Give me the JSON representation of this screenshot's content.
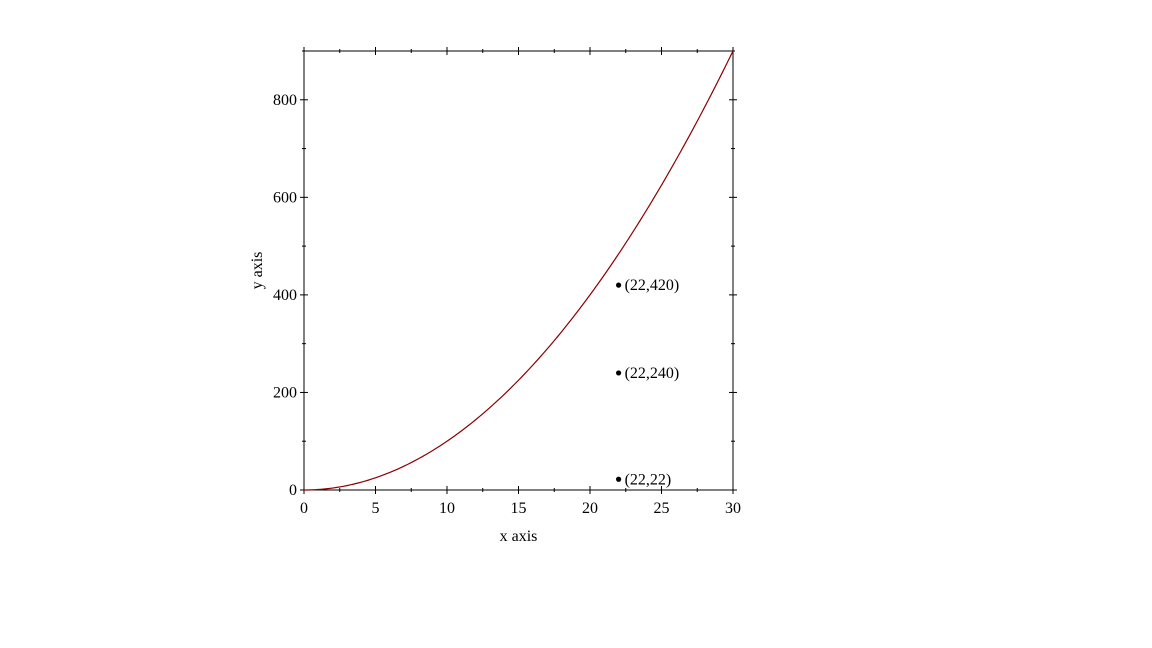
{
  "chart_data": {
    "type": "line",
    "title": "",
    "xlabel": "x axis",
    "ylabel": "y axis",
    "xlim": [
      0,
      30
    ],
    "ylim": [
      0,
      900
    ],
    "x_major_ticks": [
      0,
      5,
      10,
      15,
      20,
      25,
      30
    ],
    "x_minor_ticks": [
      2.5,
      7.5,
      12.5,
      17.5,
      22.5,
      27.5
    ],
    "y_major_ticks": [
      0,
      200,
      400,
      600,
      800
    ],
    "y_minor_ticks": [
      100,
      300,
      500,
      700,
      900
    ],
    "x_tick_labels": [
      "0",
      "5",
      "10",
      "15",
      "20",
      "25",
      "30"
    ],
    "y_tick_labels": [
      "0",
      "200",
      "400",
      "600",
      "800"
    ],
    "grid": false,
    "series": [
      {
        "kind": "function",
        "expression": "y = x^2",
        "x": [
          0,
          2,
          4,
          6,
          8,
          10,
          12,
          14,
          16,
          18,
          20,
          22,
          24,
          26,
          28,
          30
        ],
        "y": [
          0,
          4,
          16,
          36,
          64,
          100,
          144,
          196,
          256,
          324,
          400,
          484,
          576,
          676,
          784,
          900
        ],
        "color": "#8b0000"
      }
    ],
    "points": [
      {
        "x": 22,
        "y": 420,
        "label": "(22,420)"
      },
      {
        "x": 22,
        "y": 240,
        "label": "(22,240)"
      },
      {
        "x": 22,
        "y": 22,
        "label": "(22,22)"
      }
    ]
  }
}
